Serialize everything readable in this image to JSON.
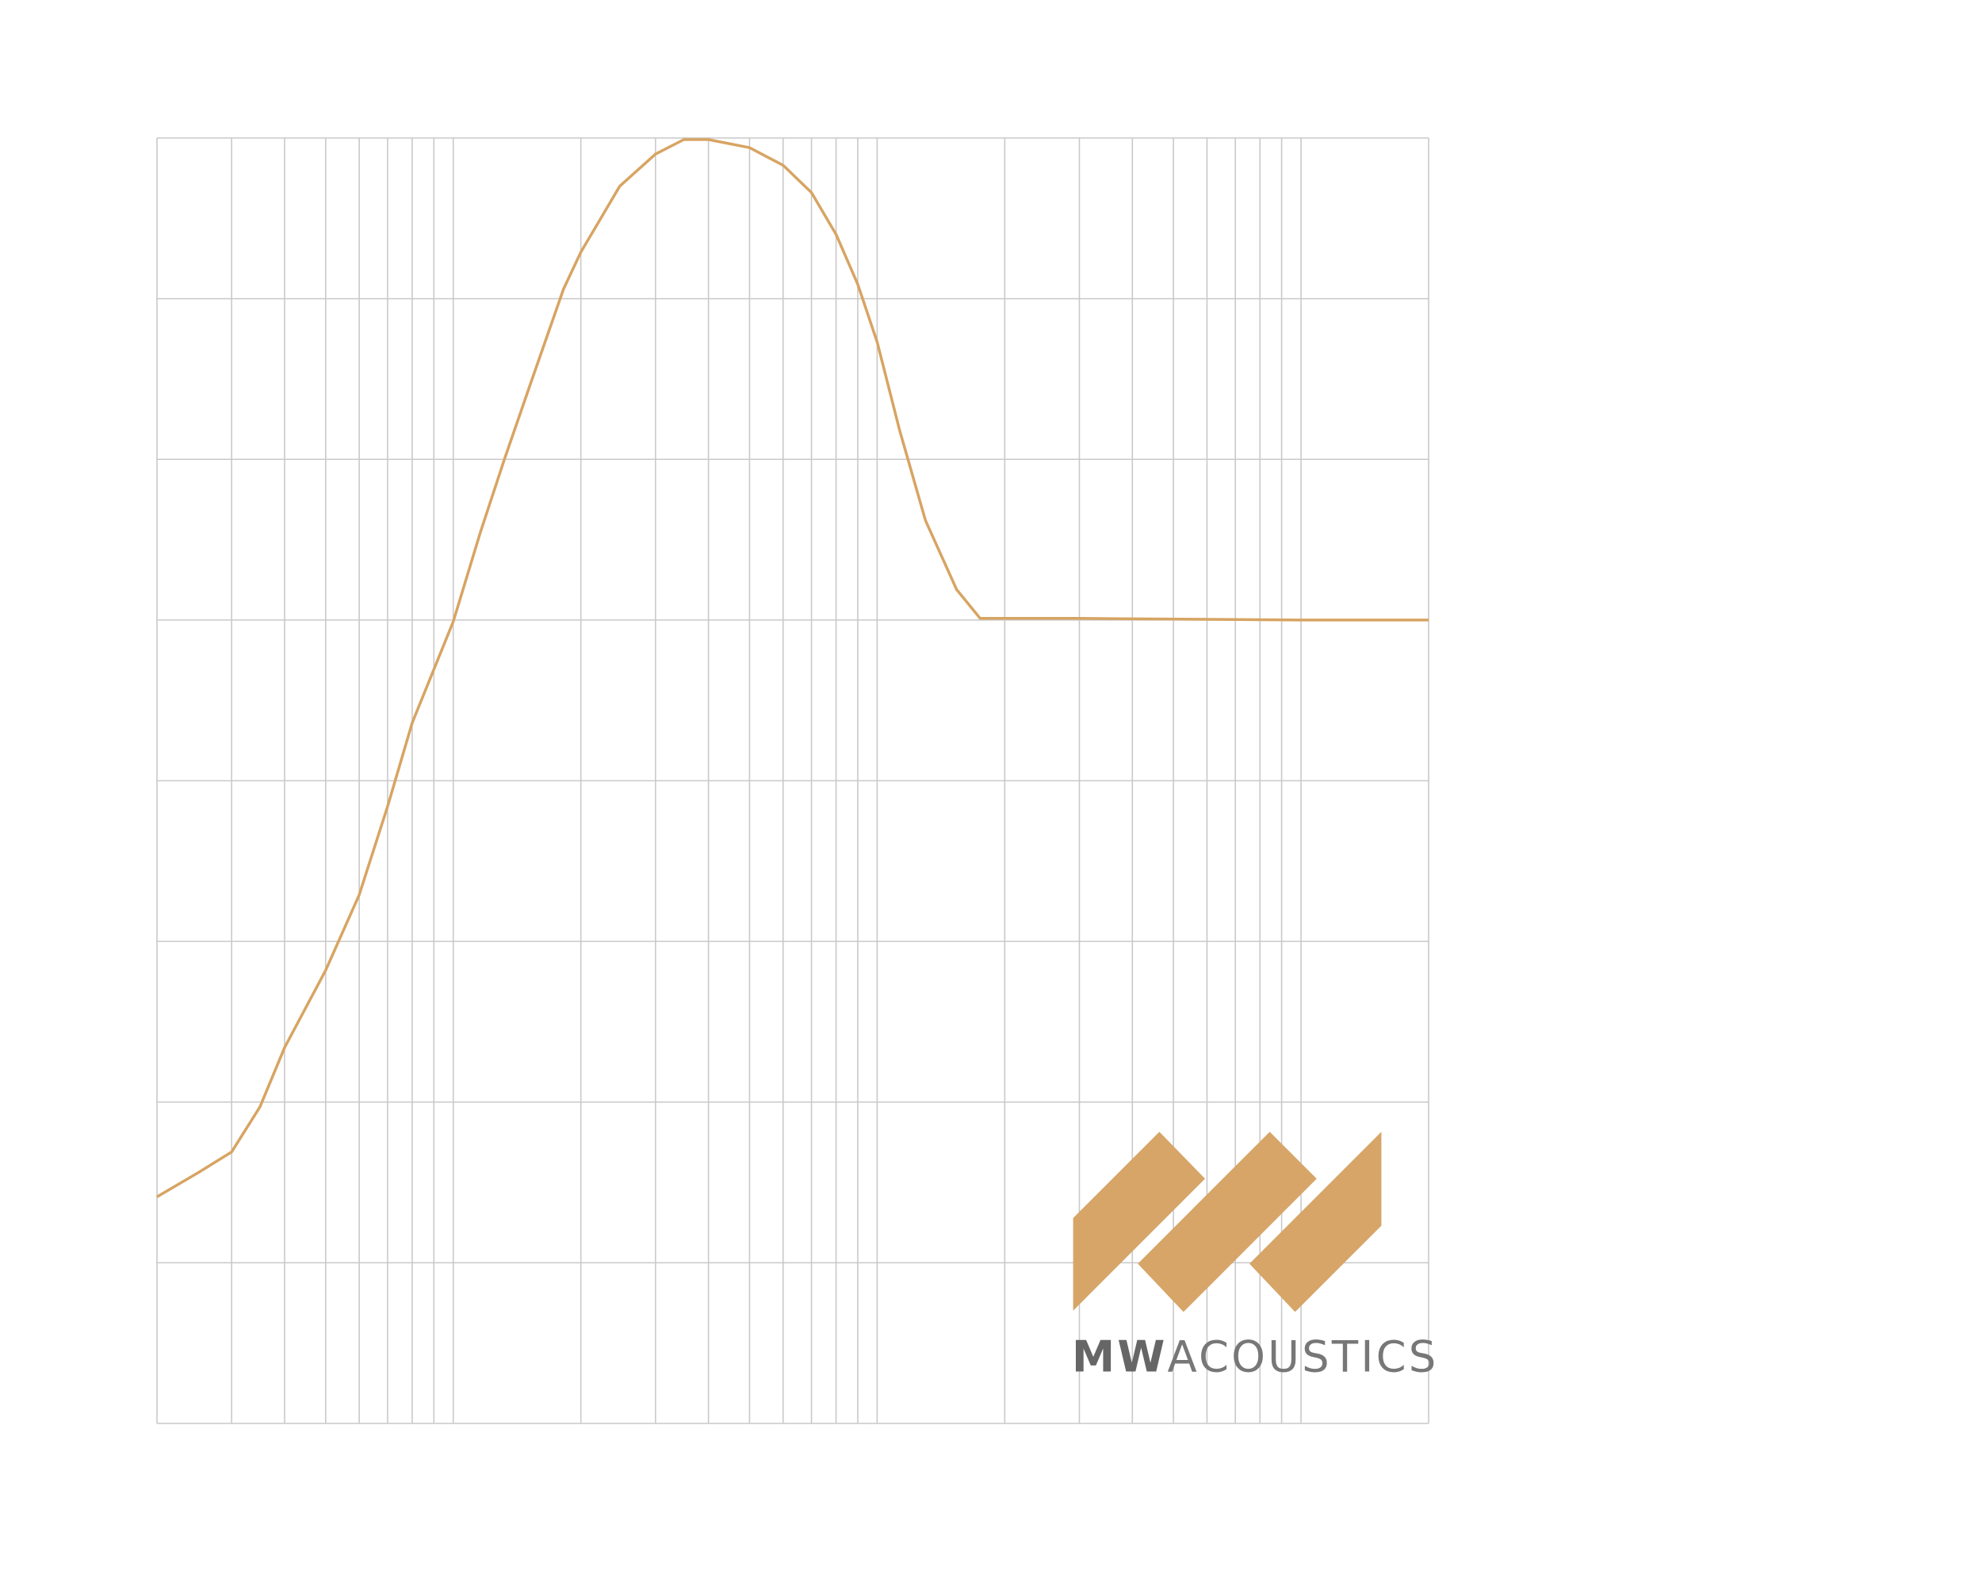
{
  "chart_data": {
    "type": "line",
    "x_scale": "log",
    "xlim": [
      20,
      20000
    ],
    "ylim": [
      0,
      8
    ],
    "xgrid": [
      20,
      30,
      40,
      50,
      60,
      70,
      80,
      90,
      100,
      200,
      300,
      400,
      500,
      600,
      700,
      800,
      900,
      1000,
      2000,
      3000,
      4000,
      5000,
      6000,
      7000,
      8000,
      9000,
      10000,
      20000
    ],
    "ygrid": [
      0,
      1,
      2,
      3,
      4,
      5,
      6,
      7,
      8
    ],
    "grid": true,
    "x": [
      20,
      25,
      30,
      35,
      40,
      50,
      60,
      70,
      80,
      100,
      116,
      132,
      153,
      182,
      200,
      247,
      300,
      350,
      400,
      500,
      600,
      700,
      800,
      900,
      1000,
      1130,
      1300,
      1540,
      1750,
      3000,
      10000,
      20000
    ],
    "series": [
      {
        "color": "#d7a462",
        "values": [
          1.41,
          1.56,
          1.69,
          1.97,
          2.34,
          2.82,
          3.29,
          3.84,
          4.36,
          4.99,
          5.55,
          6.0,
          6.49,
          7.06,
          7.29,
          7.7,
          7.9,
          7.99,
          7.99,
          7.94,
          7.83,
          7.66,
          7.4,
          7.09,
          6.73,
          6.18,
          5.62,
          5.19,
          5.01,
          5.01,
          5.0,
          5.0
        ]
      }
    ],
    "logo": {
      "bold": "MW",
      "text": "ACOUSTICS",
      "color": "#d6a567"
    }
  }
}
